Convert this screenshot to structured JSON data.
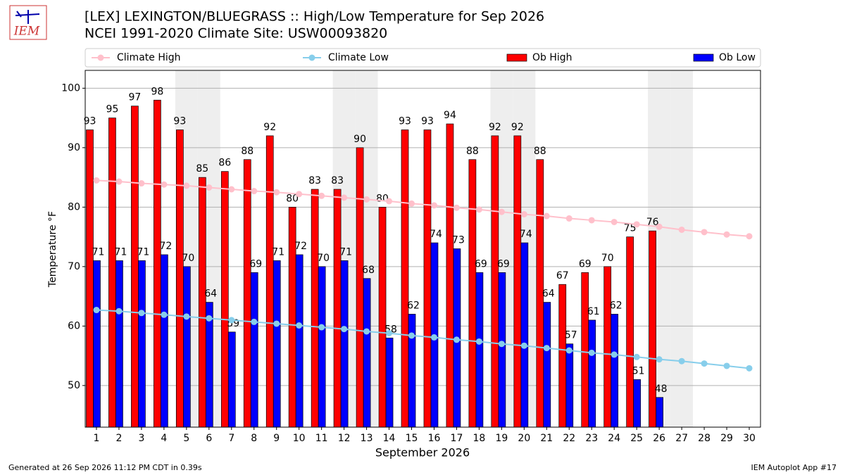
{
  "chart_data": {
    "type": "bar_line",
    "title": "[LEX] LEXINGTON/BLUEGRASS :: High/Low Temperature for Sep 2026",
    "subtitle": "NCEI 1991-2020 Climate Site: USW00093820",
    "ylabel": "Temperature °F",
    "xlabel": "September 2026",
    "logo": "IEM",
    "footer_left": "Generated at 26 Sep 2026 11:12 PM CDT in 0.39s",
    "footer_right": "IEM Autoplot App #17",
    "categories": [
      "1",
      "2",
      "3",
      "4",
      "5",
      "6",
      "7",
      "8",
      "9",
      "10",
      "11",
      "12",
      "13",
      "14",
      "15",
      "16",
      "17",
      "18",
      "19",
      "20",
      "21",
      "22",
      "23",
      "24",
      "25",
      "26",
      "27",
      "28",
      "29",
      "30"
    ],
    "shaded": [
      "5",
      "6",
      "12",
      "13",
      "19",
      "20",
      "26",
      "27"
    ],
    "shade_color": "#eeeeee",
    "series": [
      {
        "name": "Climate High",
        "type": "line",
        "color": "#ffc0cb",
        "values": [
          84.5,
          84.3,
          84.0,
          83.8,
          83.6,
          83.3,
          83.0,
          82.7,
          82.5,
          82.2,
          81.9,
          81.6,
          81.3,
          81.0,
          80.6,
          80.3,
          79.9,
          79.6,
          79.2,
          78.8,
          78.5,
          78.1,
          77.8,
          77.5,
          77.1,
          76.7,
          76.2,
          75.8,
          75.4,
          75.1
        ]
      },
      {
        "name": "Climate Low",
        "type": "line",
        "color": "#87ceeb",
        "values": [
          62.7,
          62.5,
          62.2,
          61.9,
          61.6,
          61.3,
          61.0,
          60.7,
          60.4,
          60.1,
          59.8,
          59.5,
          59.1,
          58.8,
          58.4,
          58.1,
          57.7,
          57.4,
          57.0,
          56.7,
          56.3,
          55.9,
          55.5,
          55.2,
          54.8,
          54.4,
          54.1,
          53.7,
          53.3,
          52.9
        ]
      },
      {
        "name": "Ob High",
        "type": "bar",
        "color": "#ff0000",
        "values": [
          93,
          95,
          97,
          98,
          93,
          85,
          86,
          88,
          92,
          80,
          83,
          83,
          90,
          80,
          93,
          93,
          94,
          88,
          92,
          92,
          88,
          67,
          69,
          70,
          75,
          76,
          null,
          null,
          null,
          null
        ]
      },
      {
        "name": "Ob Low",
        "type": "bar",
        "color": "#0000ff",
        "values": [
          71,
          71,
          71,
          72,
          70,
          64,
          59,
          69,
          71,
          72,
          70,
          71,
          68,
          58,
          62,
          74,
          73,
          69,
          69,
          74,
          64,
          57,
          61,
          62,
          51,
          48,
          null,
          null,
          null,
          null
        ]
      }
    ],
    "ylim": [
      43,
      103
    ],
    "yticks": [
      50,
      60,
      70,
      80,
      90,
      100
    ],
    "grid": true
  }
}
